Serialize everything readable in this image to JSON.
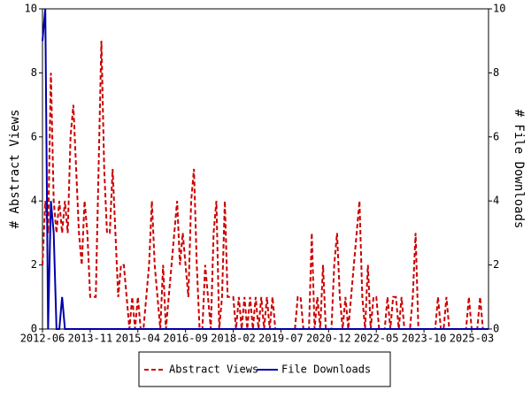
{
  "chart_data": {
    "type": "line",
    "ylabel": "# Abstract Views",
    "y2label": "# File Downloads",
    "categories": [
      "2012-06",
      null,
      null,
      null,
      null,
      null,
      null,
      null,
      null,
      null,
      null,
      null,
      null,
      null,
      null,
      null,
      null,
      "2013-11",
      null,
      null,
      null,
      null,
      null,
      null,
      null,
      null,
      null,
      null,
      null,
      null,
      null,
      null,
      null,
      null,
      "2015-04",
      null,
      null,
      null,
      null,
      null,
      null,
      null,
      null,
      null,
      null,
      null,
      null,
      null,
      null,
      null,
      null,
      "2016-09",
      null,
      null,
      null,
      null,
      null,
      null,
      null,
      null,
      null,
      null,
      null,
      null,
      null,
      null,
      null,
      null,
      "2018-02",
      null,
      null,
      null,
      null,
      null,
      null,
      null,
      null,
      null,
      null,
      null,
      null,
      null,
      null,
      null,
      null,
      "2019-07",
      null,
      null,
      null,
      null,
      null,
      null,
      null,
      null,
      null,
      null,
      null,
      null,
      null,
      null,
      null,
      null,
      "2020-12",
      null,
      null,
      null,
      null,
      null,
      null,
      null,
      null,
      null,
      null,
      null,
      null,
      null,
      null,
      null,
      null,
      "2022-05",
      null,
      null,
      null,
      null,
      null,
      null,
      null,
      null,
      null,
      null,
      null,
      null,
      null,
      null,
      null,
      null,
      "2023-10",
      null,
      null,
      null,
      null,
      null,
      null,
      null,
      null,
      null,
      null,
      null,
      null,
      null,
      null,
      null,
      null,
      "2025-03",
      null,
      null,
      null,
      null,
      null,
      null
    ],
    "series": [
      {
        "name": "Abstract Views",
        "color": "#cc0000",
        "dashed": true,
        "values": [
          2,
          4,
          3,
          8,
          4,
          3,
          4,
          3,
          4,
          3,
          6,
          7,
          5,
          3,
          2,
          4,
          3,
          1,
          1,
          1,
          5,
          9,
          5,
          3,
          3,
          5,
          3,
          1,
          2,
          2,
          1,
          0,
          1,
          0,
          1,
          0,
          0,
          1,
          2,
          4,
          2,
          1,
          0,
          2,
          0,
          1,
          2,
          3,
          4,
          2,
          3,
          2,
          1,
          4,
          5,
          2,
          0,
          0,
          2,
          1,
          0,
          3,
          4,
          0,
          1,
          4,
          1,
          1,
          1,
          0,
          1,
          0,
          1,
          0,
          1,
          0,
          1,
          0,
          1,
          0,
          1,
          0,
          1,
          0,
          0,
          0,
          0,
          0,
          0,
          0,
          0,
          1,
          1,
          0,
          0,
          0,
          3,
          0,
          1,
          0,
          2,
          0,
          0,
          0,
          2,
          3,
          1,
          0,
          1,
          0,
          1,
          2,
          3,
          4,
          1,
          0,
          2,
          0,
          1,
          1,
          0,
          0,
          0,
          1,
          0,
          1,
          1,
          0,
          1,
          0,
          0,
          0,
          1,
          3,
          0,
          0,
          0,
          0,
          0,
          0,
          0,
          1,
          0,
          0,
          1,
          0,
          0,
          0,
          0,
          0,
          0,
          0,
          1,
          0,
          0,
          0,
          1,
          0,
          0,
          0
        ]
      },
      {
        "name": "File Downloads",
        "color": "#0000aa",
        "dashed": false,
        "axis": "y2",
        "values": [
          9,
          10,
          0,
          4,
          3,
          0,
          0,
          1,
          0,
          0,
          0,
          0,
          0,
          0,
          0,
          0,
          0,
          0,
          0,
          0,
          0,
          0,
          0,
          0,
          0,
          0,
          0,
          0,
          0,
          0,
          0,
          0,
          0,
          0,
          0,
          0,
          0,
          0,
          0,
          0,
          0,
          0,
          0,
          0,
          0,
          0,
          0,
          0,
          0,
          0,
          0,
          0,
          0,
          0,
          0,
          0,
          0,
          0,
          0,
          0,
          0,
          0,
          0,
          0,
          0,
          0,
          0,
          0,
          0,
          0,
          0,
          0,
          0,
          0,
          0,
          0,
          0,
          0,
          0,
          0,
          0,
          0,
          0,
          0,
          0,
          0,
          0,
          0,
          0,
          0,
          0,
          0,
          0,
          0,
          0,
          0,
          0,
          0,
          0,
          0,
          0,
          0,
          0,
          0,
          0,
          0,
          0,
          0,
          0,
          0,
          0,
          0,
          0,
          0,
          0,
          0,
          0,
          0,
          0,
          0,
          0,
          0,
          0,
          0,
          0,
          0,
          0,
          0,
          0,
          0,
          0,
          0,
          0,
          0,
          0,
          0,
          0,
          0,
          0,
          0,
          0,
          0,
          0,
          0,
          0,
          0,
          0,
          0,
          0,
          0,
          0,
          0,
          0,
          0,
          0,
          0,
          0,
          0,
          0,
          0
        ]
      }
    ],
    "ylim": [
      0,
      10
    ],
    "yticks": [
      0,
      2,
      4,
      6,
      8,
      10
    ],
    "y2lim": [
      0,
      10
    ],
    "y2ticks": [
      0,
      2,
      4,
      6,
      8,
      10
    ],
    "legend": "bottom"
  }
}
